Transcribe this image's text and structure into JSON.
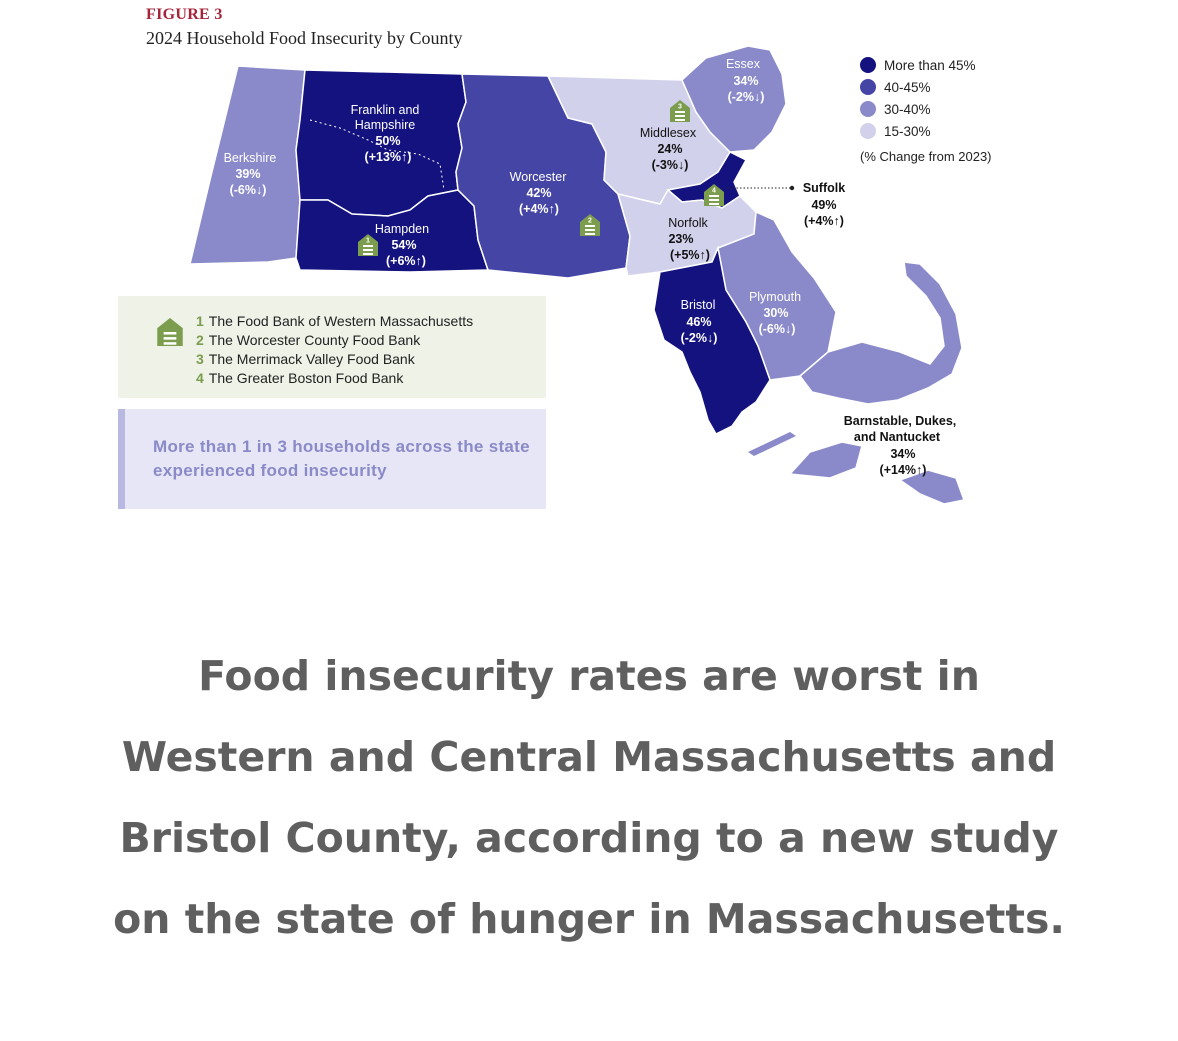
{
  "figure": {
    "label": "FIGURE 3",
    "title": "2024 Household Food Insecurity by County"
  },
  "colors": {
    "more_than_45": "#14127e",
    "range_40_45": "#4545a6",
    "range_30_40": "#8a8acb",
    "range_15_30": "#d1d1ec",
    "food_bank_icon": "#7c9c4e",
    "figure_label": "#a6243a"
  },
  "legend": {
    "items": [
      {
        "label": "More than 45%",
        "color": "#14127e"
      },
      {
        "label": "40-45%",
        "color": "#4545a6"
      },
      {
        "label": "30-40%",
        "color": "#8a8acb"
      },
      {
        "label": "15-30%",
        "color": "#d1d1ec"
      }
    ],
    "note": "(% Change from 2023)"
  },
  "counties": {
    "berkshire": {
      "name": "Berkshire",
      "rate": "39%",
      "change": "(-6%↓)"
    },
    "franklin_hampshire": {
      "name_line1": "Franklin and",
      "name_line2": "Hampshire",
      "rate": "50%",
      "change": "(+13%↑)"
    },
    "hampden": {
      "name": "Hampden",
      "rate": "54%",
      "change": "(+6%↑)"
    },
    "worcester": {
      "name": "Worcester",
      "rate": "42%",
      "change": "(+4%↑)"
    },
    "middlesex": {
      "name": "Middlesex",
      "rate": "24%",
      "change": "(-3%↓)"
    },
    "essex": {
      "name": "Essex",
      "rate": "34%",
      "change": "(-2%↓)"
    },
    "suffolk": {
      "name": "Suffolk",
      "rate": "49%",
      "change": "(+4%↑)"
    },
    "norfolk": {
      "name": "Norfolk",
      "rate": "23%",
      "change": "(+5%↑)"
    },
    "bristol": {
      "name": "Bristol",
      "rate": "46%",
      "change": "(-2%↓)"
    },
    "plymouth": {
      "name": "Plymouth",
      "rate": "30%",
      "change": "(-6%↓)"
    },
    "barnstable": {
      "name_line1": "Barnstable, Dukes,",
      "name_line2": "and Nantucket",
      "rate": "34%",
      "change": "(+14%↑)"
    }
  },
  "map_markers": [
    "1",
    "2",
    "3",
    "4"
  ],
  "food_banks": [
    {
      "num": "1",
      "name": "The Food Bank of Western Massachusetts"
    },
    {
      "num": "2",
      "name": "The Worcester County Food Bank"
    },
    {
      "num": "3",
      "name": "The Merrimack Valley Food Bank"
    },
    {
      "num": "4",
      "name": "The Greater Boston Food Bank"
    }
  ],
  "callout": "More than 1 in 3 households across the state experienced food insecurity",
  "caption": "Food insecurity rates are worst in Western and Central Massachusetts and Bristol County, according to a new study on the state of hunger in Massachusetts."
}
